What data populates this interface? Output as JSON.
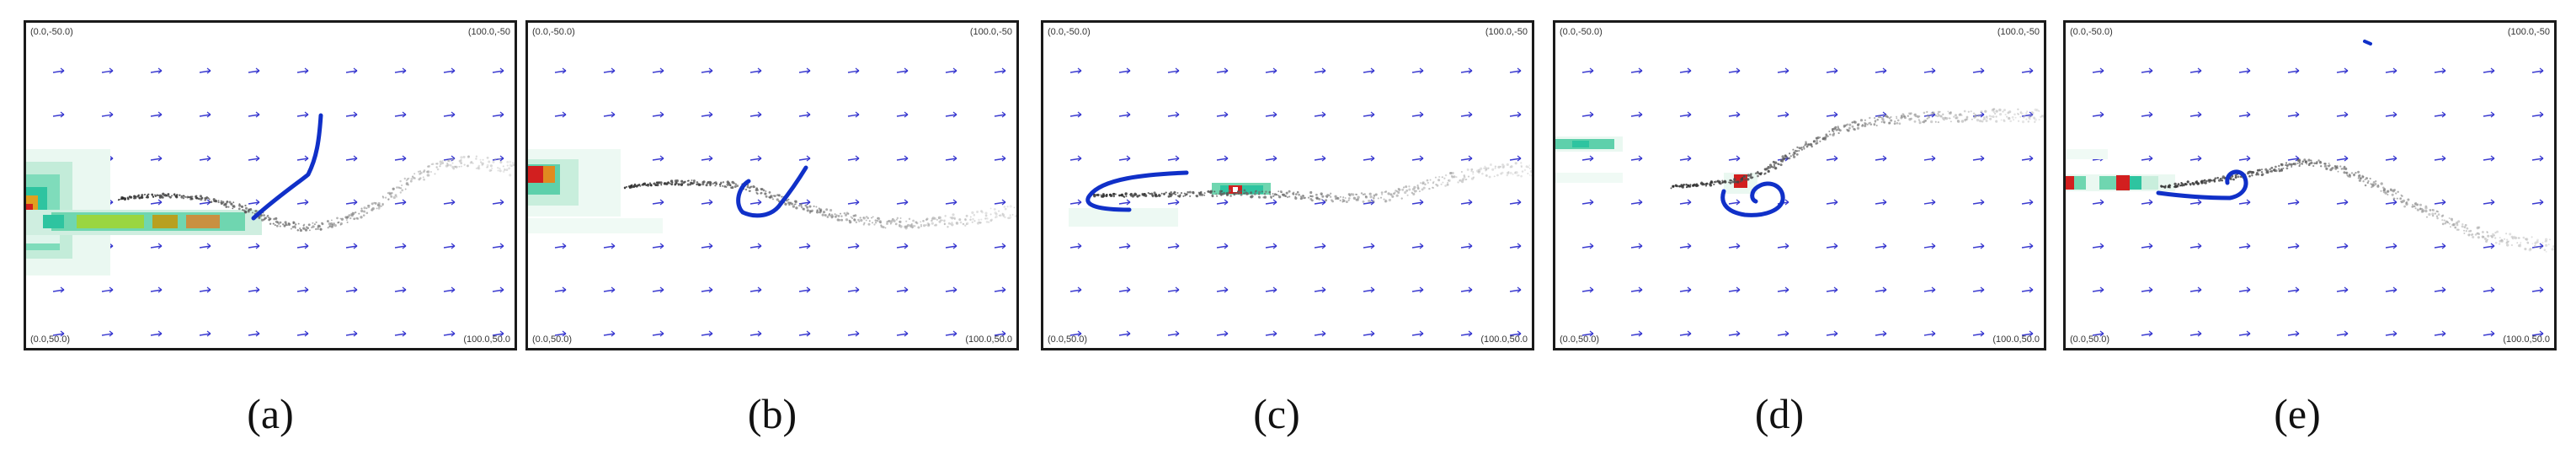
{
  "panels": [
    {
      "id": "a",
      "label": "(a)",
      "corners": {
        "top_left": "(0.0,-50.0)",
        "top_right": "(100.0,-50",
        "bottom_left": "(0.0,50.0)",
        "bottom_right": "(100.0,50.0"
      }
    },
    {
      "id": "b",
      "label": "(b)",
      "corners": {
        "top_left": "(0.0,-50.0)",
        "top_right": "(100.0,-50",
        "bottom_left": "(0.0,50.0)",
        "bottom_right": "(100.0,50.0"
      }
    },
    {
      "id": "c",
      "label": "(c)",
      "corners": {
        "top_left": "(0.0,-50.0)",
        "top_right": "(100.0,-50",
        "bottom_left": "(0.0,50.0)",
        "bottom_right": "(100.0,50.0"
      }
    },
    {
      "id": "d",
      "label": "(d)",
      "corners": {
        "top_left": "(0.0,-50.0)",
        "top_right": "(100.0,-50",
        "bottom_left": "(0.0,50.0)",
        "bottom_right": "(100.0,50.0"
      }
    },
    {
      "id": "e",
      "label": "(e)",
      "corners": {
        "top_left": "(0.0,-50.0)",
        "top_right": "(100.0,-50",
        "bottom_left": "(0.0,50.0)",
        "bottom_right": "(100.0,50.0"
      }
    }
  ],
  "colors": {
    "arrow": "#3a3ad0",
    "trajectory": "#1030c8",
    "plume": "#222222",
    "heat_low": "#e6f7ee",
    "heat_mid": "#2ec4a0",
    "heat_high": "#d21f1f",
    "border": "#1a1a1a"
  }
}
